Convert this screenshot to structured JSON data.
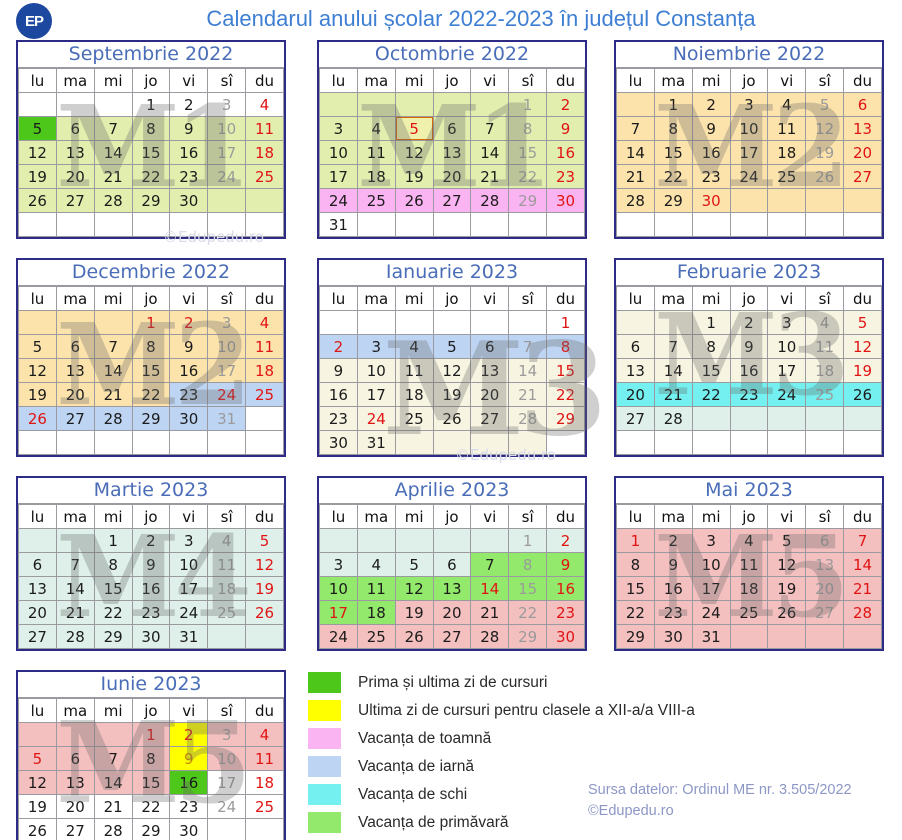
{
  "header": {
    "logo_text": "EP",
    "title": "Calendarul anului școlar 2022-2023 în județul Constanța"
  },
  "day_headers": [
    "lu",
    "ma",
    "mi",
    "jo",
    "vi",
    "sî",
    "du"
  ],
  "palette": {
    "m1": "#e2eeae",
    "m2": "#fce3ab",
    "m3": "#f7f5e1",
    "m4": "#def0e9",
    "m5": "#f4bfbf",
    "au": "#fab4f2",
    "wi": "#bdd4f3",
    "sk": "#74f0f0",
    "sp": "#92e96b",
    "fl": "#4cc71a",
    "ye": "#ffff00",
    "o5": "#eef0ac"
  },
  "text_colors": {
    "k": "#1b1b1b",
    "g": "#9b9b9b",
    "r": "#e11414",
    "o": "#c98a00"
  },
  "months": [
    {
      "name": "Septembrie 2022",
      "wm": "M1",
      "weeks": [
        [
          "::",
          "::",
          "::",
          "1::k",
          "2::k",
          "3::g",
          "4::r"
        ],
        [
          "5:fl:k",
          "6:m1:k",
          "7:m1:k",
          "8:m1:k",
          "9:m1:k",
          "10:m1:g",
          "11:m1:r"
        ],
        [
          "12:m1:k",
          "13:m1:k",
          "14:m1:k",
          "15:m1:k",
          "16:m1:k",
          "17:m1:g",
          "18:m1:r"
        ],
        [
          "19:m1:k",
          "20:m1:k",
          "21:m1:k",
          "22:m1:k",
          "23:m1:k",
          "24:m1:g",
          "25:m1:r"
        ],
        [
          "26:m1:k",
          "27:m1:k",
          "28:m1:k",
          "29:m1:k",
          "30:m1:k",
          ":m1:",
          ":m1:"
        ],
        [
          "::",
          "::",
          "::",
          "::",
          "::",
          "::",
          "::"
        ]
      ]
    },
    {
      "name": "Octombrie 2022",
      "wm": "M1",
      "weeks": [
        [
          ":m1:",
          ":m1:",
          ":m1:",
          ":m1:",
          ":m1:",
          "1:m1:g",
          "2:m1:r"
        ],
        [
          "3:m1:k",
          "4:m1:k",
          "5:o5:r",
          "6:m1:k",
          "7:m1:k",
          "8:m1:g",
          "9:m1:r"
        ],
        [
          "10:m1:k",
          "11:m1:k",
          "12:m1:k",
          "13:m1:k",
          "14:m1:k",
          "15:m1:g",
          "16:m1:r"
        ],
        [
          "17:m1:k",
          "18:m1:k",
          "19:m1:k",
          "20:m1:k",
          "21:m1:k",
          "22:m1:g",
          "23:m1:r"
        ],
        [
          "24:au:k",
          "25:au:k",
          "26:au:k",
          "27:au:k",
          "28:au:k",
          "29:au:g",
          "30:au:r"
        ],
        [
          "31::k",
          "::",
          "::",
          "::",
          "::",
          "::",
          "::"
        ]
      ]
    },
    {
      "name": "Noiembrie 2022",
      "wm": "M2",
      "weeks": [
        [
          ":m2:",
          "1:m2:k",
          "2:m2:k",
          "3:m2:k",
          "4:m2:k",
          "5:m2:g",
          "6:m2:r"
        ],
        [
          "7:m2:k",
          "8:m2:k",
          "9:m2:k",
          "10:m2:k",
          "11:m2:k",
          "12:m2:g",
          "13:m2:r"
        ],
        [
          "14:m2:k",
          "15:m2:k",
          "16:m2:k",
          "17:m2:k",
          "18:m2:k",
          "19:m2:g",
          "20:m2:r"
        ],
        [
          "21:m2:k",
          "22:m2:k",
          "23:m2:k",
          "24:m2:k",
          "25:m2:k",
          "26:m2:g",
          "27:m2:r"
        ],
        [
          "28:m2:k",
          "29:m2:k",
          "30:m2:r",
          ":m2:",
          ":m2:",
          ":m2:",
          ":m2:"
        ],
        [
          "::",
          "::",
          "::",
          "::",
          "::",
          "::",
          "::"
        ]
      ]
    },
    {
      "name": "Decembrie 2022",
      "wm": "M2",
      "weeks": [
        [
          ":m2:",
          ":m2:",
          ":m2:",
          "1:m2:r",
          "2:m2:r",
          "3:m2:g",
          "4:m2:r"
        ],
        [
          "5:m2:k",
          "6:m2:k",
          "7:m2:k",
          "8:m2:k",
          "9:m2:k",
          "10:m2:g",
          "11:m2:r"
        ],
        [
          "12:m2:k",
          "13:m2:k",
          "14:m2:k",
          "15:m2:k",
          "16:m2:k",
          "17:m2:g",
          "18:m2:r"
        ],
        [
          "19:m2:k",
          "20:m2:k",
          "21:m2:k",
          "22:m2:k",
          "23:wi:k",
          "24:wi:r",
          "25:wi:r"
        ],
        [
          "26:wi:r",
          "27:wi:k",
          "28:wi:k",
          "29:wi:k",
          "30:wi:k",
          "31:wi:g",
          "::"
        ],
        [
          "::",
          "::",
          "::",
          "::",
          "::",
          "::",
          "::"
        ]
      ]
    },
    {
      "name": "Ianuarie 2023",
      "wm": "M3",
      "weeks": [
        [
          "::",
          "::",
          "::",
          "::",
          "::",
          "::",
          "1::r"
        ],
        [
          "2:wi:r",
          "3:wi:k",
          "4:wi:k",
          "5:wi:k",
          "6:wi:k",
          "7:wi:g",
          "8:wi:r"
        ],
        [
          "9:m3:k",
          "10:m3:k",
          "11:m3:k",
          "12:m3:k",
          "13:m3:k",
          "14:m3:g",
          "15:m3:r"
        ],
        [
          "16:m3:k",
          "17:m3:k",
          "18:m3:k",
          "19:m3:k",
          "20:m3:k",
          "21:m3:g",
          "22:m3:r"
        ],
        [
          "23:m3:k",
          "24:m3:r",
          "25:m3:k",
          "26:m3:k",
          "27:m3:k",
          "28:m3:g",
          "29:m3:r"
        ],
        [
          "30:m3:k",
          "31:m3:k",
          ":m3:",
          ":m3:",
          ":m3:",
          ":m3:",
          "::"
        ]
      ]
    },
    {
      "name": "Februarie 2023",
      "wm": "M3",
      "weeks": [
        [
          ":m3:",
          ":m3:",
          "1:m3:k",
          "2:m3:k",
          "3:m3:k",
          "4:m3:g",
          "5:m3:r"
        ],
        [
          "6:m3:k",
          "7:m3:k",
          "8:m3:k",
          "9:m3:k",
          "10:m3:k",
          "11:m3:g",
          "12:m3:r"
        ],
        [
          "13:m3:k",
          "14:m3:k",
          "15:m3:k",
          "16:m3:k",
          "17:m3:k",
          "18:m3:g",
          "19:m3:r"
        ],
        [
          "20:sk:k",
          "21:sk:k",
          "22:sk:k",
          "23:sk:k",
          "24:sk:k",
          "25:sk:g",
          "26:sk:k"
        ],
        [
          "27:m4:k",
          "28:m4:k",
          ":m4:",
          ":m4:",
          ":m4:",
          ":m4:",
          ":m4:"
        ],
        [
          "::",
          "::",
          "::",
          "::",
          "::",
          "::",
          "::"
        ]
      ]
    },
    {
      "name": "Martie 2023",
      "wm": "M4",
      "weeks": [
        [
          ":m4:",
          ":m4:",
          "1:m4:k",
          "2:m4:k",
          "3:m4:k",
          "4:m4:g",
          "5:m4:r"
        ],
        [
          "6:m4:k",
          "7:m4:k",
          "8:m4:k",
          "9:m4:k",
          "10:m4:k",
          "11:m4:g",
          "12:m4:r"
        ],
        [
          "13:m4:k",
          "14:m4:k",
          "15:m4:k",
          "16:m4:k",
          "17:m4:k",
          "18:m4:g",
          "19:m4:r"
        ],
        [
          "20:m4:k",
          "21:m4:k",
          "22:m4:k",
          "23:m4:k",
          "24:m4:k",
          "25:m4:g",
          "26:m4:r"
        ],
        [
          "27:m4:k",
          "28:m4:k",
          "29:m4:k",
          "30:m4:k",
          "31:m4:k",
          ":m4:",
          ":m4:"
        ]
      ]
    },
    {
      "name": "Aprilie 2023",
      "wm": "",
      "weeks": [
        [
          ":m4:",
          ":m4:",
          ":m4:",
          ":m4:",
          ":m4:",
          "1:m4:g",
          "2:m4:r"
        ],
        [
          "3:m4:k",
          "4:m4:k",
          "5:m4:k",
          "6:m4:k",
          "7:sp:k",
          "8:sp:g",
          "9:sp:r"
        ],
        [
          "10:sp:k",
          "11:sp:k",
          "12:sp:k",
          "13:sp:k",
          "14:sp:r",
          "15:sp:g",
          "16:sp:r"
        ],
        [
          "17:sp:r",
          "18:sp:k",
          "19:m5:k",
          "20:m5:k",
          "21:m5:k",
          "22:m5:g",
          "23:m5:r"
        ],
        [
          "24:m5:k",
          "25:m5:k",
          "26:m5:k",
          "27:m5:k",
          "28:m5:k",
          "29:m5:g",
          "30:m5:r"
        ]
      ]
    },
    {
      "name": "Mai 2023",
      "wm": "M5",
      "weeks": [
        [
          "1:m5:r",
          "2:m5:k",
          "3:m5:k",
          "4:m5:k",
          "5:m5:k",
          "6:m5:g",
          "7:m5:r"
        ],
        [
          "8:m5:k",
          "9:m5:k",
          "10:m5:k",
          "11:m5:k",
          "12:m5:k",
          "13:m5:g",
          "14:m5:r"
        ],
        [
          "15:m5:k",
          "16:m5:k",
          "17:m5:k",
          "18:m5:k",
          "19:m5:k",
          "20:m5:g",
          "21:m5:r"
        ],
        [
          "22:m5:k",
          "23:m5:k",
          "24:m5:k",
          "25:m5:k",
          "26:m5:k",
          "27:m5:g",
          "28:m5:r"
        ],
        [
          "29:m5:k",
          "30:m5:k",
          "31:m5:k",
          ":m5:",
          ":m5:",
          ":m5:",
          ":m5:"
        ]
      ]
    },
    {
      "name": "Iunie 2023",
      "wm": "M5",
      "weeks": [
        [
          ":m5:",
          ":m5:",
          ":m5:",
          "1:m5:r",
          "2:ye:r",
          "3:m5:g",
          "4:m5:r"
        ],
        [
          "5:m5:r",
          "6:m5:k",
          "7:m5:k",
          "8:m5:k",
          "9:ye:o",
          "10:m5:g",
          "11:m5:r"
        ],
        [
          "12:m5:k",
          "13:m5:k",
          "14:m5:k",
          "15:m5:k",
          "16:fl:k",
          "17::g",
          "18::r"
        ],
        [
          "19::k",
          "20::k",
          "21::k",
          "22::k",
          "23::k",
          "24::g",
          "25::r"
        ],
        [
          "26::k",
          "27::k",
          "28::k",
          "29::k",
          "30::k",
          "::",
          "::"
        ]
      ]
    }
  ],
  "legend": [
    {
      "color_key": "fl",
      "label": "Prima și ultima zi de cursuri"
    },
    {
      "color_key": "ye",
      "label": "Ultima zi de cursuri pentru clasele a XII-a/a VIII-a"
    },
    {
      "color_key": "au",
      "label": "Vacanța de toamnă"
    },
    {
      "color_key": "wi",
      "label": "Vacanța de iarnă"
    },
    {
      "color_key": "sk",
      "label": "Vacanța de schi"
    },
    {
      "color_key": "sp",
      "label": "Vacanța de primăvară"
    }
  ],
  "floating_watermarks": [
    "©Edupedu.ro",
    "©Edupedu.ro"
  ],
  "source": {
    "line1": "Sursa datelor: Ordinul ME nr. 3.505/2022",
    "line2": "©Edupedu.ro"
  }
}
